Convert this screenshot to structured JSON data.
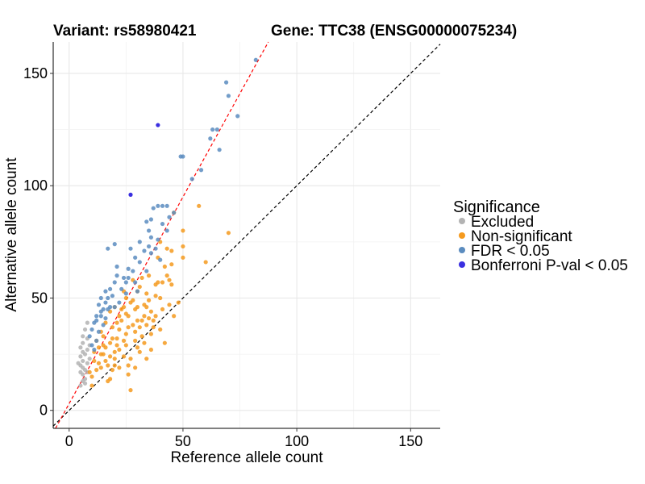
{
  "chart_data": {
    "type": "scatter",
    "title_left": "Variant: rs58980421",
    "title_right": "Gene: TTC38 (ENSG00000075234)",
    "xlabel": "Reference allele count",
    "ylabel": "Alternative allele count",
    "xlim": [
      -7,
      163
    ],
    "ylim": [
      -8,
      164
    ],
    "x_ticks": [
      0,
      50,
      100,
      150
    ],
    "y_ticks": [
      0,
      50,
      100,
      150
    ],
    "grid": true,
    "legend_position": "right",
    "legend_title": "Significance",
    "reference_lines": [
      {
        "name": "identity",
        "slope": 1,
        "intercept": 0,
        "color": "#000000",
        "style": "dashed"
      },
      {
        "name": "fit",
        "slope": 1.84,
        "intercept": 3,
        "color": "#ff0000",
        "style": "dashed"
      }
    ],
    "series": [
      {
        "name": "Excluded",
        "color": "#b3b3b3",
        "points": [
          [
            5,
            17
          ],
          [
            5,
            20
          ],
          [
            6,
            16
          ],
          [
            6,
            19
          ],
          [
            7,
            18
          ],
          [
            6,
            22
          ],
          [
            7,
            25
          ],
          [
            8,
            21
          ],
          [
            6,
            13
          ],
          [
            7,
            14
          ],
          [
            8,
            27
          ],
          [
            5,
            28
          ],
          [
            6,
            30
          ],
          [
            6,
            33
          ],
          [
            8,
            32
          ],
          [
            7,
            36
          ],
          [
            8,
            39
          ],
          [
            9,
            23
          ],
          [
            5,
            24
          ],
          [
            4,
            21
          ],
          [
            7,
            12
          ],
          [
            8,
            17
          ],
          [
            6,
            26
          ],
          [
            9,
            29
          ],
          [
            5,
            11
          ]
        ]
      },
      {
        "name": "Non-significant",
        "color": "#f59a1e",
        "points": [
          [
            10,
            11
          ],
          [
            12,
            18
          ],
          [
            14,
            25
          ],
          [
            16,
            22
          ],
          [
            18,
            30
          ],
          [
            20,
            26
          ],
          [
            22,
            36
          ],
          [
            24,
            31
          ],
          [
            26,
            42
          ],
          [
            28,
            38
          ],
          [
            30,
            46
          ],
          [
            32,
            40
          ],
          [
            34,
            52
          ],
          [
            36,
            44
          ],
          [
            38,
            56
          ],
          [
            40,
            50
          ],
          [
            42,
            64
          ],
          [
            44,
            58
          ],
          [
            46,
            88
          ],
          [
            50,
            80
          ],
          [
            57,
            91
          ],
          [
            60,
            66
          ],
          [
            70,
            79
          ],
          [
            13,
            28
          ],
          [
            15,
            33
          ],
          [
            17,
            20
          ],
          [
            19,
            37
          ],
          [
            21,
            29
          ],
          [
            23,
            45
          ],
          [
            25,
            34
          ],
          [
            27,
            48
          ],
          [
            29,
            35
          ],
          [
            31,
            55
          ],
          [
            33,
            47
          ],
          [
            35,
            60
          ],
          [
            37,
            40
          ],
          [
            39,
            68
          ],
          [
            41,
            45
          ],
          [
            43,
            60
          ],
          [
            45,
            56
          ],
          [
            11,
            22
          ],
          [
            9,
            17
          ],
          [
            14,
            19
          ],
          [
            16,
            39
          ],
          [
            18,
            44
          ],
          [
            20,
            23
          ],
          [
            22,
            27
          ],
          [
            24,
            53
          ],
          [
            26,
            20
          ],
          [
            28,
            58
          ],
          [
            30,
            28
          ],
          [
            32,
            33
          ],
          [
            34,
            38
          ],
          [
            36,
            34
          ],
          [
            38,
            42
          ],
          [
            40,
            36
          ],
          [
            44,
            47
          ],
          [
            12,
            31
          ],
          [
            18,
            14
          ],
          [
            22,
            19
          ],
          [
            26,
            16
          ],
          [
            27,
            9
          ],
          [
            24,
            24
          ],
          [
            25,
            43
          ],
          [
            30,
            53
          ],
          [
            35,
            41
          ],
          [
            33,
            30
          ],
          [
            31,
            26
          ],
          [
            29,
            19
          ],
          [
            34,
            23
          ],
          [
            36,
            27
          ],
          [
            48,
            48
          ],
          [
            50,
            68
          ],
          [
            42,
            30
          ],
          [
            46,
            42
          ],
          [
            15,
            25
          ],
          [
            17,
            13
          ],
          [
            19,
            18
          ],
          [
            21,
            32
          ],
          [
            23,
            40
          ],
          [
            25,
            29
          ],
          [
            27,
            23
          ],
          [
            29,
            45
          ],
          [
            31,
            37
          ],
          [
            33,
            42
          ],
          [
            35,
            49
          ],
          [
            37,
            37
          ],
          [
            39,
            57
          ],
          [
            41,
            57
          ],
          [
            43,
            72
          ],
          [
            45,
            65
          ],
          [
            40,
            75
          ],
          [
            15,
            29
          ],
          [
            20,
            20
          ],
          [
            28,
            49
          ],
          [
            32,
            59
          ],
          [
            10,
            15
          ],
          [
            13,
            21
          ],
          [
            11,
            26
          ],
          [
            16,
            28
          ],
          [
            14,
            35
          ],
          [
            19,
            32
          ],
          [
            22,
            42
          ],
          [
            26,
            37
          ],
          [
            24,
            46
          ],
          [
            30,
            40
          ],
          [
            29,
            31
          ],
          [
            25,
            50
          ],
          [
            20,
            46
          ],
          [
            18,
            24
          ],
          [
            21,
            39
          ],
          [
            34,
            46
          ],
          [
            38,
            51
          ],
          [
            45,
            71
          ],
          [
            50,
            73
          ]
        ]
      },
      {
        "name": "FDR < 0.05",
        "color": "#5b8cbf",
        "points": [
          [
            82,
            156
          ],
          [
            69,
            146
          ],
          [
            70,
            140
          ],
          [
            74,
            131
          ],
          [
            63,
            125
          ],
          [
            65,
            125
          ],
          [
            62,
            121
          ],
          [
            66,
            116
          ],
          [
            50,
            113
          ],
          [
            49,
            113
          ],
          [
            58,
            107
          ],
          [
            54,
            103
          ],
          [
            39,
            91
          ],
          [
            41,
            91
          ],
          [
            37,
            90
          ],
          [
            43,
            91
          ],
          [
            46,
            88
          ],
          [
            36,
            85
          ],
          [
            34,
            84
          ],
          [
            35,
            80
          ],
          [
            36,
            77
          ],
          [
            31,
            75
          ],
          [
            20,
            74
          ],
          [
            27,
            72
          ],
          [
            17,
            72
          ],
          [
            38,
            72
          ],
          [
            29,
            68
          ],
          [
            40,
            67
          ],
          [
            34,
            62
          ],
          [
            28,
            62
          ],
          [
            21,
            60
          ],
          [
            26,
            59
          ],
          [
            25,
            57
          ],
          [
            20,
            57
          ],
          [
            18,
            54
          ],
          [
            23,
            54
          ],
          [
            30,
            53
          ],
          [
            16,
            53
          ],
          [
            14,
            50
          ],
          [
            19,
            51
          ],
          [
            13,
            47
          ],
          [
            22,
            48
          ],
          [
            17,
            45
          ],
          [
            14,
            44
          ],
          [
            12,
            42
          ],
          [
            16,
            41
          ],
          [
            11,
            39
          ],
          [
            15,
            38
          ],
          [
            10,
            36
          ],
          [
            13,
            35
          ],
          [
            9,
            33
          ],
          [
            12,
            31
          ],
          [
            10,
            29
          ],
          [
            11,
            27
          ],
          [
            21,
            64
          ],
          [
            33,
            71
          ],
          [
            39,
            76
          ],
          [
            31,
            66
          ],
          [
            24,
            59
          ],
          [
            16,
            48
          ],
          [
            14,
            42
          ],
          [
            12,
            40
          ],
          [
            20,
            46
          ],
          [
            25,
            52
          ],
          [
            29,
            57
          ],
          [
            36,
            70
          ],
          [
            43,
            80
          ],
          [
            26,
            63
          ],
          [
            17,
            50
          ],
          [
            15,
            45
          ],
          [
            18,
            46
          ],
          [
            35,
            73
          ],
          [
            41,
            83
          ],
          [
            44,
            86
          ]
        ]
      },
      {
        "name": "Bonferroni P-val < 0.05",
        "color": "#3a2fe0",
        "points": [
          [
            39,
            127
          ],
          [
            27,
            96
          ]
        ]
      }
    ]
  }
}
